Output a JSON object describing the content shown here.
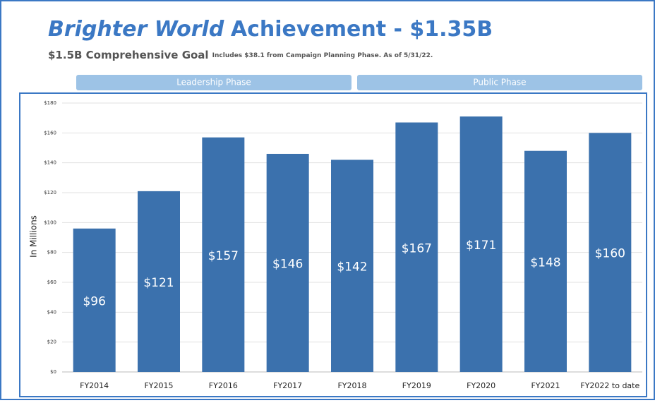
{
  "chart_data": {
    "type": "bar",
    "title_emphasis": "Brighter World",
    "title": "Achievement - $1.35B",
    "subtitle": "$1.5B Comprehensive Goal",
    "subtitle_note": "Includes $38.1 from Campaign Planning Phase. As of 5/31/22.",
    "phases": [
      "Leadership Phase",
      "Public Phase"
    ],
    "y_label": "In Millions",
    "categories": [
      "FY2014",
      "FY2015",
      "FY2016",
      "FY2017",
      "FY2018",
      "FY2019",
      "FY2020",
      "FY2021",
      "FY2022 to date"
    ],
    "values": [
      96,
      121,
      157,
      146,
      142,
      167,
      171,
      148,
      160
    ],
    "value_labels": [
      "$96",
      "$121",
      "$157",
      "$146",
      "$142",
      "$167",
      "$171",
      "$148",
      "$160"
    ],
    "color": "#3b71ad",
    "ylim": [
      0,
      180
    ],
    "yticks": [
      {
        "value": 0,
        "label": "$0"
      },
      {
        "value": 20,
        "label": "$20"
      },
      {
        "value": 40,
        "label": "$40"
      },
      {
        "value": 60,
        "label": "$60"
      },
      {
        "value": 80,
        "label": "$80"
      },
      {
        "value": 100,
        "label": "$100"
      },
      {
        "value": 120,
        "label": "$120"
      },
      {
        "value": 140,
        "label": "$140"
      },
      {
        "value": 160,
        "label": "$160"
      },
      {
        "value": 180,
        "label": "$180"
      }
    ],
    "grid": true
  }
}
